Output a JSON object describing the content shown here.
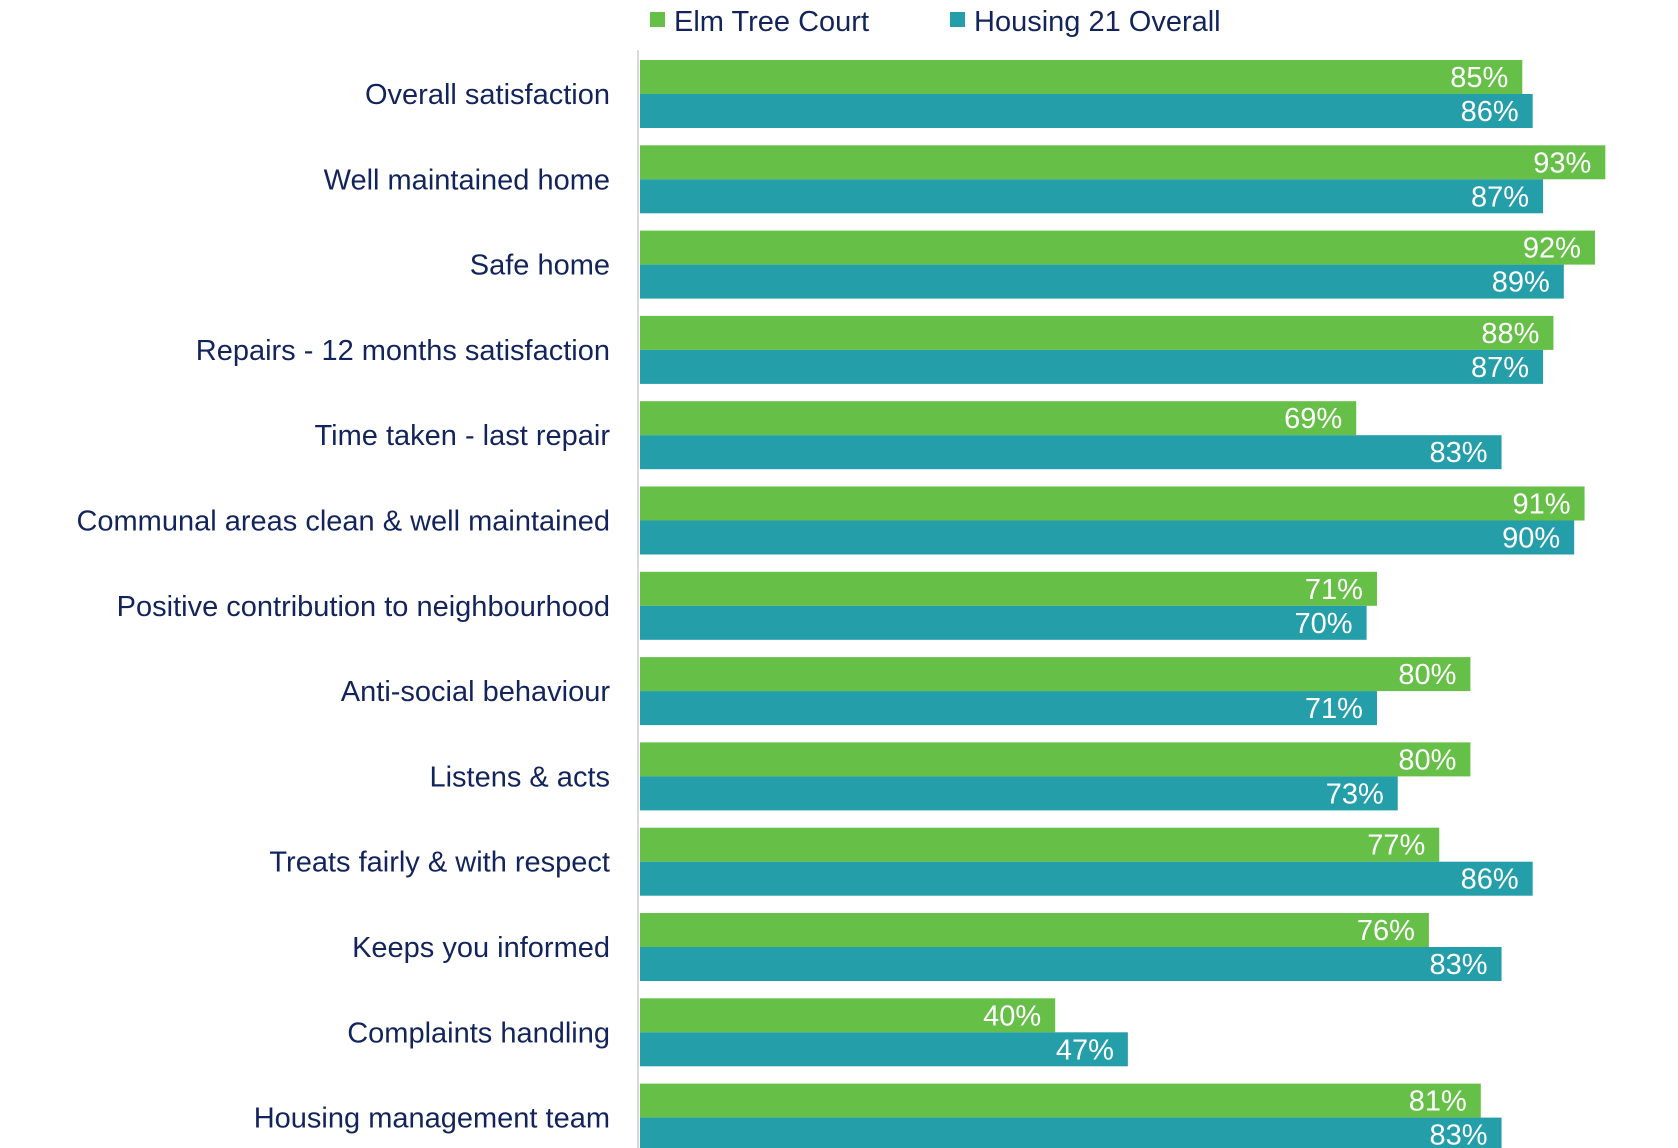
{
  "chart_data": {
    "type": "bar",
    "orientation": "horizontal",
    "categories": [
      "Overall satisfaction",
      "Well maintained home",
      "Safe home",
      "Repairs - 12 months satisfaction",
      "Time taken - last repair",
      "Communal areas clean & well maintained",
      "Positive contribution to neighbourhood",
      "Anti-social behaviour",
      "Listens & acts",
      "Treats fairly & with respect",
      "Keeps you informed",
      "Complaints handling",
      "Housing management team"
    ],
    "series": [
      {
        "name": "Elm Tree Court",
        "color": "#66bf47",
        "values": [
          85,
          93,
          92,
          88,
          69,
          91,
          71,
          80,
          80,
          77,
          76,
          40,
          81
        ]
      },
      {
        "name": "Housing 21 Overall",
        "color": "#249ea9",
        "values": [
          86,
          87,
          89,
          87,
          83,
          90,
          70,
          71,
          73,
          86,
          83,
          47,
          83
        ]
      }
    ],
    "value_suffix": "%",
    "xlim": [
      0,
      100
    ],
    "legend_position": "top",
    "grid": false,
    "title": "",
    "xlabel": "",
    "ylabel": ""
  }
}
